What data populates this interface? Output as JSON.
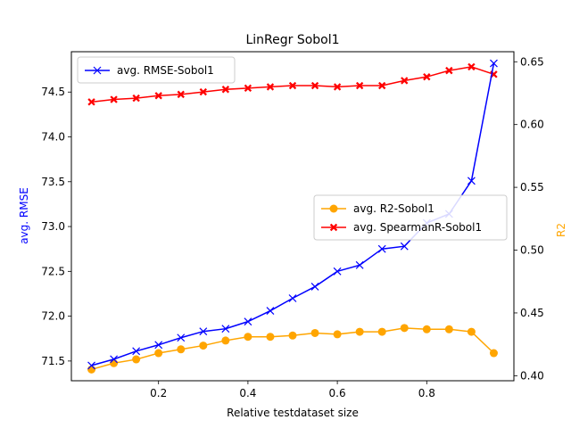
{
  "chart_data": {
    "type": "line",
    "title": "LinRegr Sobol1",
    "xlabel": "Relative testdataset size",
    "ylabel_left": "avg. RMSE",
    "ylabel_right": "R2",
    "xlim": [
      0.005,
      0.995
    ],
    "ylim_left": [
      71.28,
      74.95
    ],
    "ylim_right": [
      0.396,
      0.658
    ],
    "x_ticks": [
      0.2,
      0.4,
      0.6,
      0.8
    ],
    "x_tick_labels": [
      "0.2",
      "0.4",
      "0.6",
      "0.8"
    ],
    "y_left_ticks": [
      71.5,
      72.0,
      72.5,
      73.0,
      73.5,
      74.0,
      74.5
    ],
    "y_left_tick_labels": [
      "71.5",
      "72.0",
      "72.5",
      "73.0",
      "73.5",
      "74.0",
      "74.5"
    ],
    "y_right_ticks": [
      0.4,
      0.45,
      0.5,
      0.55,
      0.6,
      0.65
    ],
    "y_right_tick_labels": [
      "0.40",
      "0.45",
      "0.50",
      "0.55",
      "0.60",
      "0.65"
    ],
    "x": [
      0.05,
      0.1,
      0.15,
      0.2,
      0.25,
      0.3,
      0.35,
      0.4,
      0.45,
      0.5,
      0.55,
      0.6,
      0.65,
      0.7,
      0.75,
      0.8,
      0.85,
      0.9,
      0.95
    ],
    "series": [
      {
        "name": "avg. RMSE-Sobol1",
        "axis": "left",
        "color": "#0000ff",
        "marker": "x",
        "values": [
          71.45,
          71.52,
          71.61,
          71.68,
          71.76,
          71.83,
          71.86,
          71.94,
          72.06,
          72.2,
          72.33,
          72.5,
          72.57,
          72.75,
          72.78,
          73.04,
          73.14,
          73.51,
          74.82
        ]
      },
      {
        "name": "avg. R2-Sobol1",
        "axis": "right",
        "color": "#ffa500",
        "marker": "circle",
        "values": [
          0.405,
          0.41,
          0.413,
          0.418,
          0.421,
          0.424,
          0.428,
          0.431,
          0.431,
          0.432,
          0.434,
          0.433,
          0.435,
          0.435,
          0.438,
          0.437,
          0.437,
          0.435,
          0.418
        ]
      },
      {
        "name": "avg. SpearmanR-Sobol1",
        "axis": "right",
        "color": "#ff0000",
        "marker": "X",
        "values": [
          0.618,
          0.62,
          0.621,
          0.623,
          0.624,
          0.626,
          0.628,
          0.629,
          0.63,
          0.631,
          0.631,
          0.63,
          0.631,
          0.631,
          0.635,
          0.638,
          0.643,
          0.646,
          0.64
        ]
      }
    ],
    "legends": [
      {
        "placement": "upper-left",
        "series": [
          0
        ]
      },
      {
        "placement": "center-right",
        "series": [
          1,
          2
        ]
      }
    ]
  }
}
